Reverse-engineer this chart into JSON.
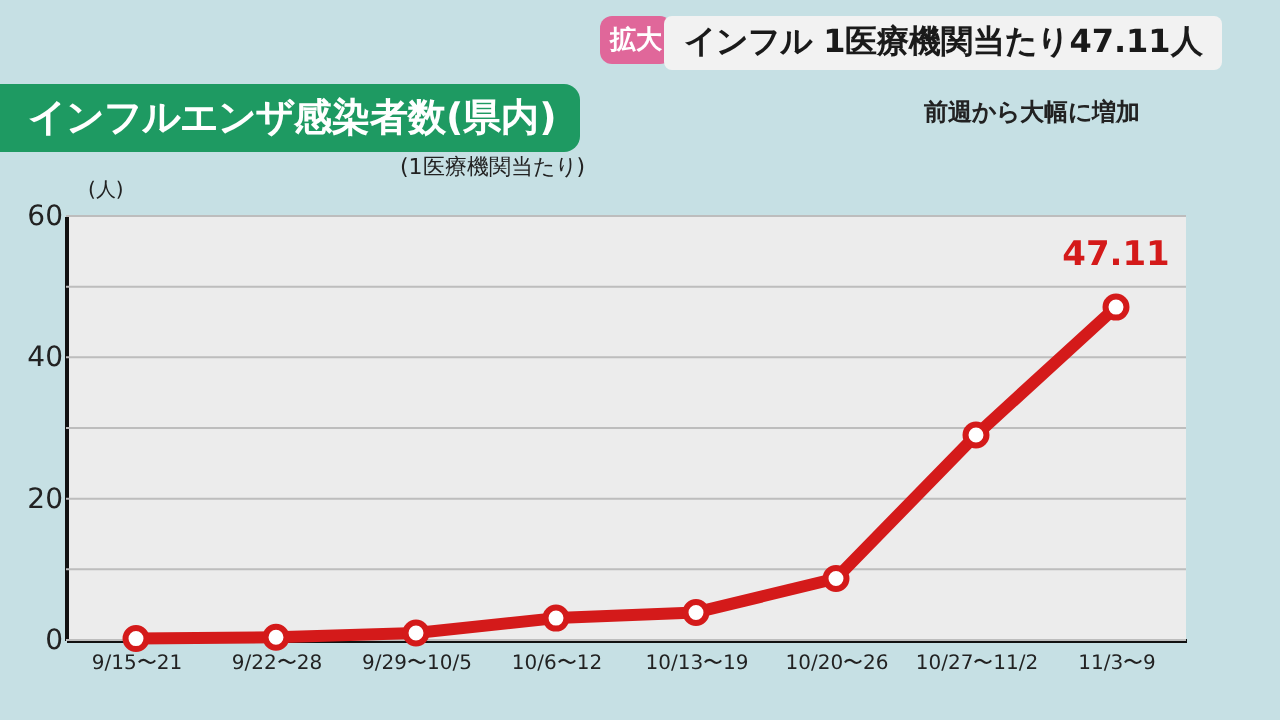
{
  "chart_data": {
    "type": "line",
    "title": "インフルエンザ感染者数(県内)",
    "subtitle": "(1医療機関当たり)",
    "ylabel": "(人)",
    "annotations": [
      "拡大",
      "インフル 1医療機関当たり47.11人",
      "前週から大幅に増加"
    ],
    "categories": [
      "9/15〜21",
      "9/22〜28",
      "9/29〜10/5",
      "10/6〜12",
      "10/13〜19",
      "10/20〜26",
      "10/27〜11/2",
      "11/3〜9"
    ],
    "series": [
      {
        "color": "#d41a1a",
        "values": [
          0.2,
          0.4,
          1.0,
          3.1,
          3.9,
          8.7,
          29.0,
          47.11
        ],
        "value_labels": [
          null,
          null,
          null,
          null,
          null,
          null,
          null,
          "47.11"
        ]
      }
    ],
    "ylim": [
      0,
      60
    ],
    "yticks": [
      0,
      {
        "value": 10,
        "label": null
      },
      20,
      {
        "value": 30,
        "label": null
      },
      40,
      {
        "value": 50,
        "label": null
      },
      60
    ],
    "grid": "y",
    "marker": "circle",
    "line_style": "solid"
  }
}
